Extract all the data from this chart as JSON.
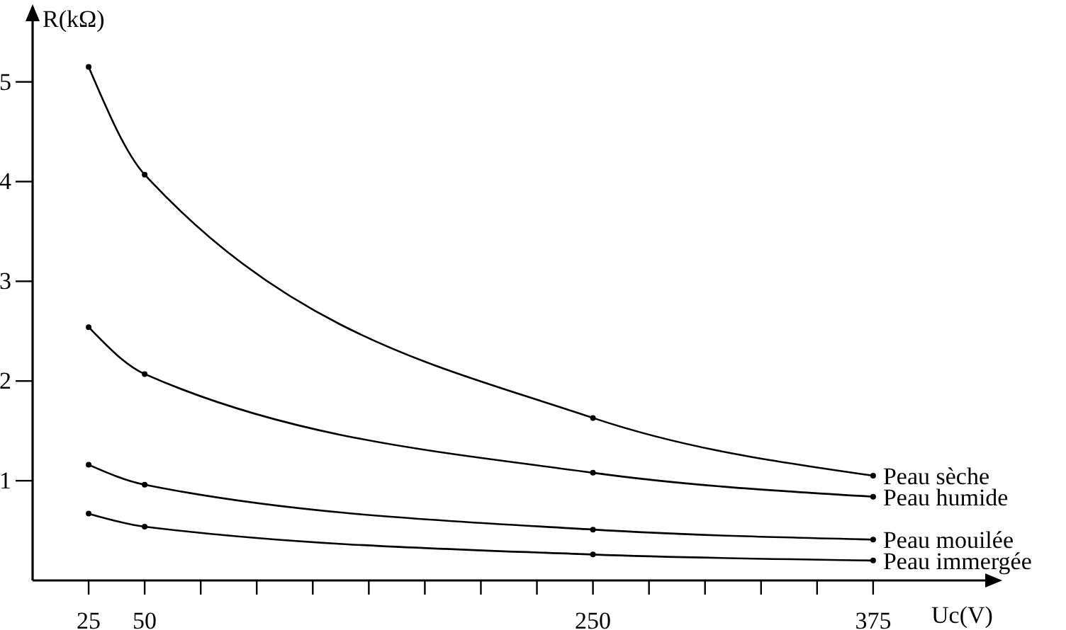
{
  "chart_data": {
    "type": "line",
    "xlabel": "Uc(V)",
    "ylabel": "R(kΩ)",
    "x": [
      25,
      50,
      250,
      375
    ],
    "xlim": [
      0,
      425
    ],
    "ylim": [
      0,
      5.75
    ],
    "xticks": [
      25,
      50,
      {
        "value": 75,
        "label": null
      },
      {
        "value": 100,
        "label": null
      },
      {
        "value": 125,
        "label": null
      },
      {
        "value": 150,
        "label": null
      },
      {
        "value": 175,
        "label": null
      },
      {
        "value": 200,
        "label": null
      },
      {
        "value": 225,
        "label": null
      },
      250,
      {
        "value": 275,
        "label": null
      },
      {
        "value": 300,
        "label": null
      },
      {
        "value": 325,
        "label": null
      },
      {
        "value": 350,
        "label": null
      },
      375
    ],
    "yticks": [
      1,
      2,
      3,
      4,
      5
    ],
    "grid": false,
    "marker": "circle",
    "line_style": "solid",
    "series": [
      {
        "name": "Peau sèche",
        "color": "#000000",
        "values": [
          5.15,
          4.07,
          1.63,
          1.05
        ]
      },
      {
        "name": "Peau humide",
        "color": "#000000",
        "values": [
          2.54,
          2.07,
          1.08,
          0.84
        ]
      },
      {
        "name": "Peau mouilée",
        "color": "#000000",
        "values": [
          1.16,
          0.96,
          0.51,
          0.41
        ]
      },
      {
        "name": "Peau immergée",
        "color": "#000000",
        "values": [
          0.67,
          0.54,
          0.26,
          0.2
        ]
      }
    ]
  }
}
